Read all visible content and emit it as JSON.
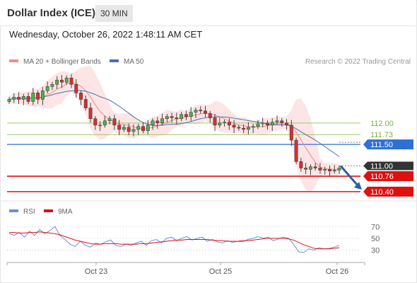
{
  "header": {
    "title": "Dollar Index (ICE)",
    "timeframe": "30 MIN",
    "datetime": "Wednesday, October 26, 2022 1:48:11 AM CET"
  },
  "colors": {
    "ma20": "#f28b8b",
    "ma50": "#4f6db8",
    "bollinger_fill": "#fcdcdc",
    "green_level": "#9ccc65",
    "blue_level": "#2f6fd6",
    "red_level": "#e01010",
    "current_price": "#333333",
    "rsi": "#6d8ed9",
    "rsi_ma": "#e01010",
    "arrow": "#2b5ea8"
  },
  "chart_data": [
    {
      "type": "candlestick",
      "legend": [
        "MA 20 + Bollinger Bands",
        "MA 50"
      ],
      "copyright": "Research © 2022 Trading Central",
      "x_ticks": [
        "Oct 23",
        "Oct 25",
        "Oct 26"
      ],
      "price_range": [
        110.2,
        113.25
      ],
      "levels": [
        {
          "label": "112.00",
          "value": 112.0,
          "style": "resistance"
        },
        {
          "label": "111.73",
          "value": 111.73,
          "style": "resistance"
        },
        {
          "label": "111.50",
          "value": 111.5,
          "style": "pivot"
        },
        {
          "label": "111.00",
          "value": 111.0,
          "style": "last"
        },
        {
          "label": "110.76",
          "value": 110.76,
          "style": "support"
        },
        {
          "label": "110.40",
          "value": 110.4,
          "style": "support"
        }
      ],
      "close_series": [
        112.55,
        112.6,
        112.55,
        112.62,
        112.5,
        112.7,
        112.55,
        112.75,
        112.85,
        112.9,
        113.0,
        112.95,
        113.05,
        112.9,
        112.7,
        112.55,
        112.35,
        112.1,
        111.95,
        111.95,
        112.05,
        112.1,
        111.95,
        111.85,
        111.9,
        111.8,
        111.85,
        111.92,
        111.82,
        111.95,
        112.05,
        112.0,
        112.1,
        112.15,
        112.12,
        112.1,
        112.2,
        112.15,
        112.25,
        112.3,
        112.28,
        112.22,
        112.12,
        111.95,
        112.0,
        112.02,
        111.95,
        111.9,
        111.88,
        111.85,
        111.9,
        111.92,
        111.98,
        112.0,
        111.95,
        112.02,
        112.05,
        112.0,
        111.95,
        111.6,
        111.1,
        110.95,
        110.92,
        110.98,
        110.95,
        110.9,
        110.92,
        110.88,
        110.9,
        110.95
      ]
    },
    {
      "type": "line",
      "legend": [
        "RSI",
        "9MA"
      ],
      "y_ticks": [
        "70",
        "50",
        "30"
      ],
      "ylim": [
        10,
        80
      ],
      "series": [
        {
          "name": "RSI",
          "values": [
            58,
            55,
            60,
            52,
            62,
            55,
            65,
            58,
            63,
            70,
            55,
            48,
            40,
            36,
            45,
            38,
            35,
            42,
            40,
            44,
            47,
            38,
            36,
            40,
            38,
            42,
            45,
            38,
            46,
            48,
            42,
            50,
            52,
            46,
            50,
            53,
            47,
            50,
            52,
            45,
            48,
            44,
            42,
            46,
            43,
            45,
            44,
            48,
            50,
            53,
            50,
            52,
            46,
            49,
            52,
            50,
            40,
            27,
            26,
            32,
            30,
            34,
            32,
            33,
            35,
            38
          ]
        },
        {
          "name": "9MA",
          "values": [
            60,
            60,
            59,
            59,
            60,
            60,
            61,
            60,
            59,
            58,
            56,
            53,
            50,
            47,
            45,
            43,
            41,
            40,
            40,
            41,
            41,
            41,
            40,
            40,
            40,
            40,
            41,
            41,
            42,
            43,
            44,
            45,
            46,
            47,
            47,
            48,
            48,
            48,
            48,
            48,
            47,
            46,
            46,
            45,
            45,
            45,
            46,
            46,
            47,
            48,
            49,
            50,
            50,
            50,
            50,
            49,
            47,
            43,
            39,
            36,
            33,
            32,
            32,
            32,
            33,
            34
          ]
        }
      ]
    }
  ]
}
